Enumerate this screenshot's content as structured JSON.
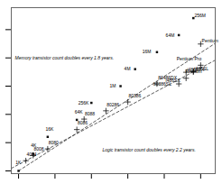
{
  "chart_data": {
    "type": "scatter",
    "log": "y",
    "xlim": [
      1969,
      1997
    ],
    "ylim": [
      800,
      600000000
    ],
    "xticks": [
      1970,
      1975,
      1980,
      1985,
      1990,
      1995
    ],
    "yticks": [
      1000,
      10000,
      100000,
      1000000,
      10000000,
      100000000
    ],
    "tick_labels": false,
    "grid": false,
    "series": [
      {
        "type": "line",
        "line_style": "dashed",
        "color": "#333333",
        "x": [
          1970,
          1997
        ],
        "values": [
          1000,
          32768000
        ]
      },
      {
        "type": "line",
        "line_style": "dashed",
        "color": "#333333",
        "x": [
          1969,
          1997
        ],
        "values": [
          1224.8,
          8305300
        ]
      },
      {
        "type": "scatter",
        "marker": "square",
        "color": "#111111",
        "data_labels": true,
        "x": [
          1970,
          1972,
          1974,
          1978,
          1980,
          1984,
          1986,
          1989,
          1992,
          1994
        ],
        "values": [
          1000,
          4000,
          16000,
          64000,
          256000,
          1000000,
          4000000,
          16000000,
          64000000,
          256000000
        ],
        "value_labels": [
          "1K",
          "4K",
          "16K",
          "64K",
          "256K",
          "1M",
          "4M",
          "16M",
          "64M",
          "256M"
        ]
      },
      {
        "type": "scatter",
        "marker": "plus",
        "color": "#111111",
        "x": [
          1971,
          1972,
          1974,
          1978,
          1979,
          1982,
          1985,
          1989,
          1992,
          1993,
          1993,
          1994,
          1994,
          1995,
          1995
        ],
        "values": [
          2300,
          3500,
          6000,
          29000,
          68000,
          134000,
          275000,
          1200000,
          1200000,
          1900000,
          3100000,
          3200000,
          3300000,
          5500000,
          31000000
        ],
        "labels": [
          "4004",
          "8008",
          "8080",
          "8086",
          "8088",
          "80286",
          "80386",
          "80486DX",
          "80386SL",
          "Pentium",
          "i486DX4",
          "i486SL",
          "i486SX",
          "Pentium Pro",
          "Pentium"
        ]
      }
    ],
    "annotations": [
      {
        "text": "Memory transistor count doubles every 1.8 years.",
        "x": 1969.5,
        "y": 10000000
      },
      {
        "text": "Logic transistor count doubles every 2.2 years.",
        "x": 1981.5,
        "y": 5623.4
      }
    ]
  }
}
